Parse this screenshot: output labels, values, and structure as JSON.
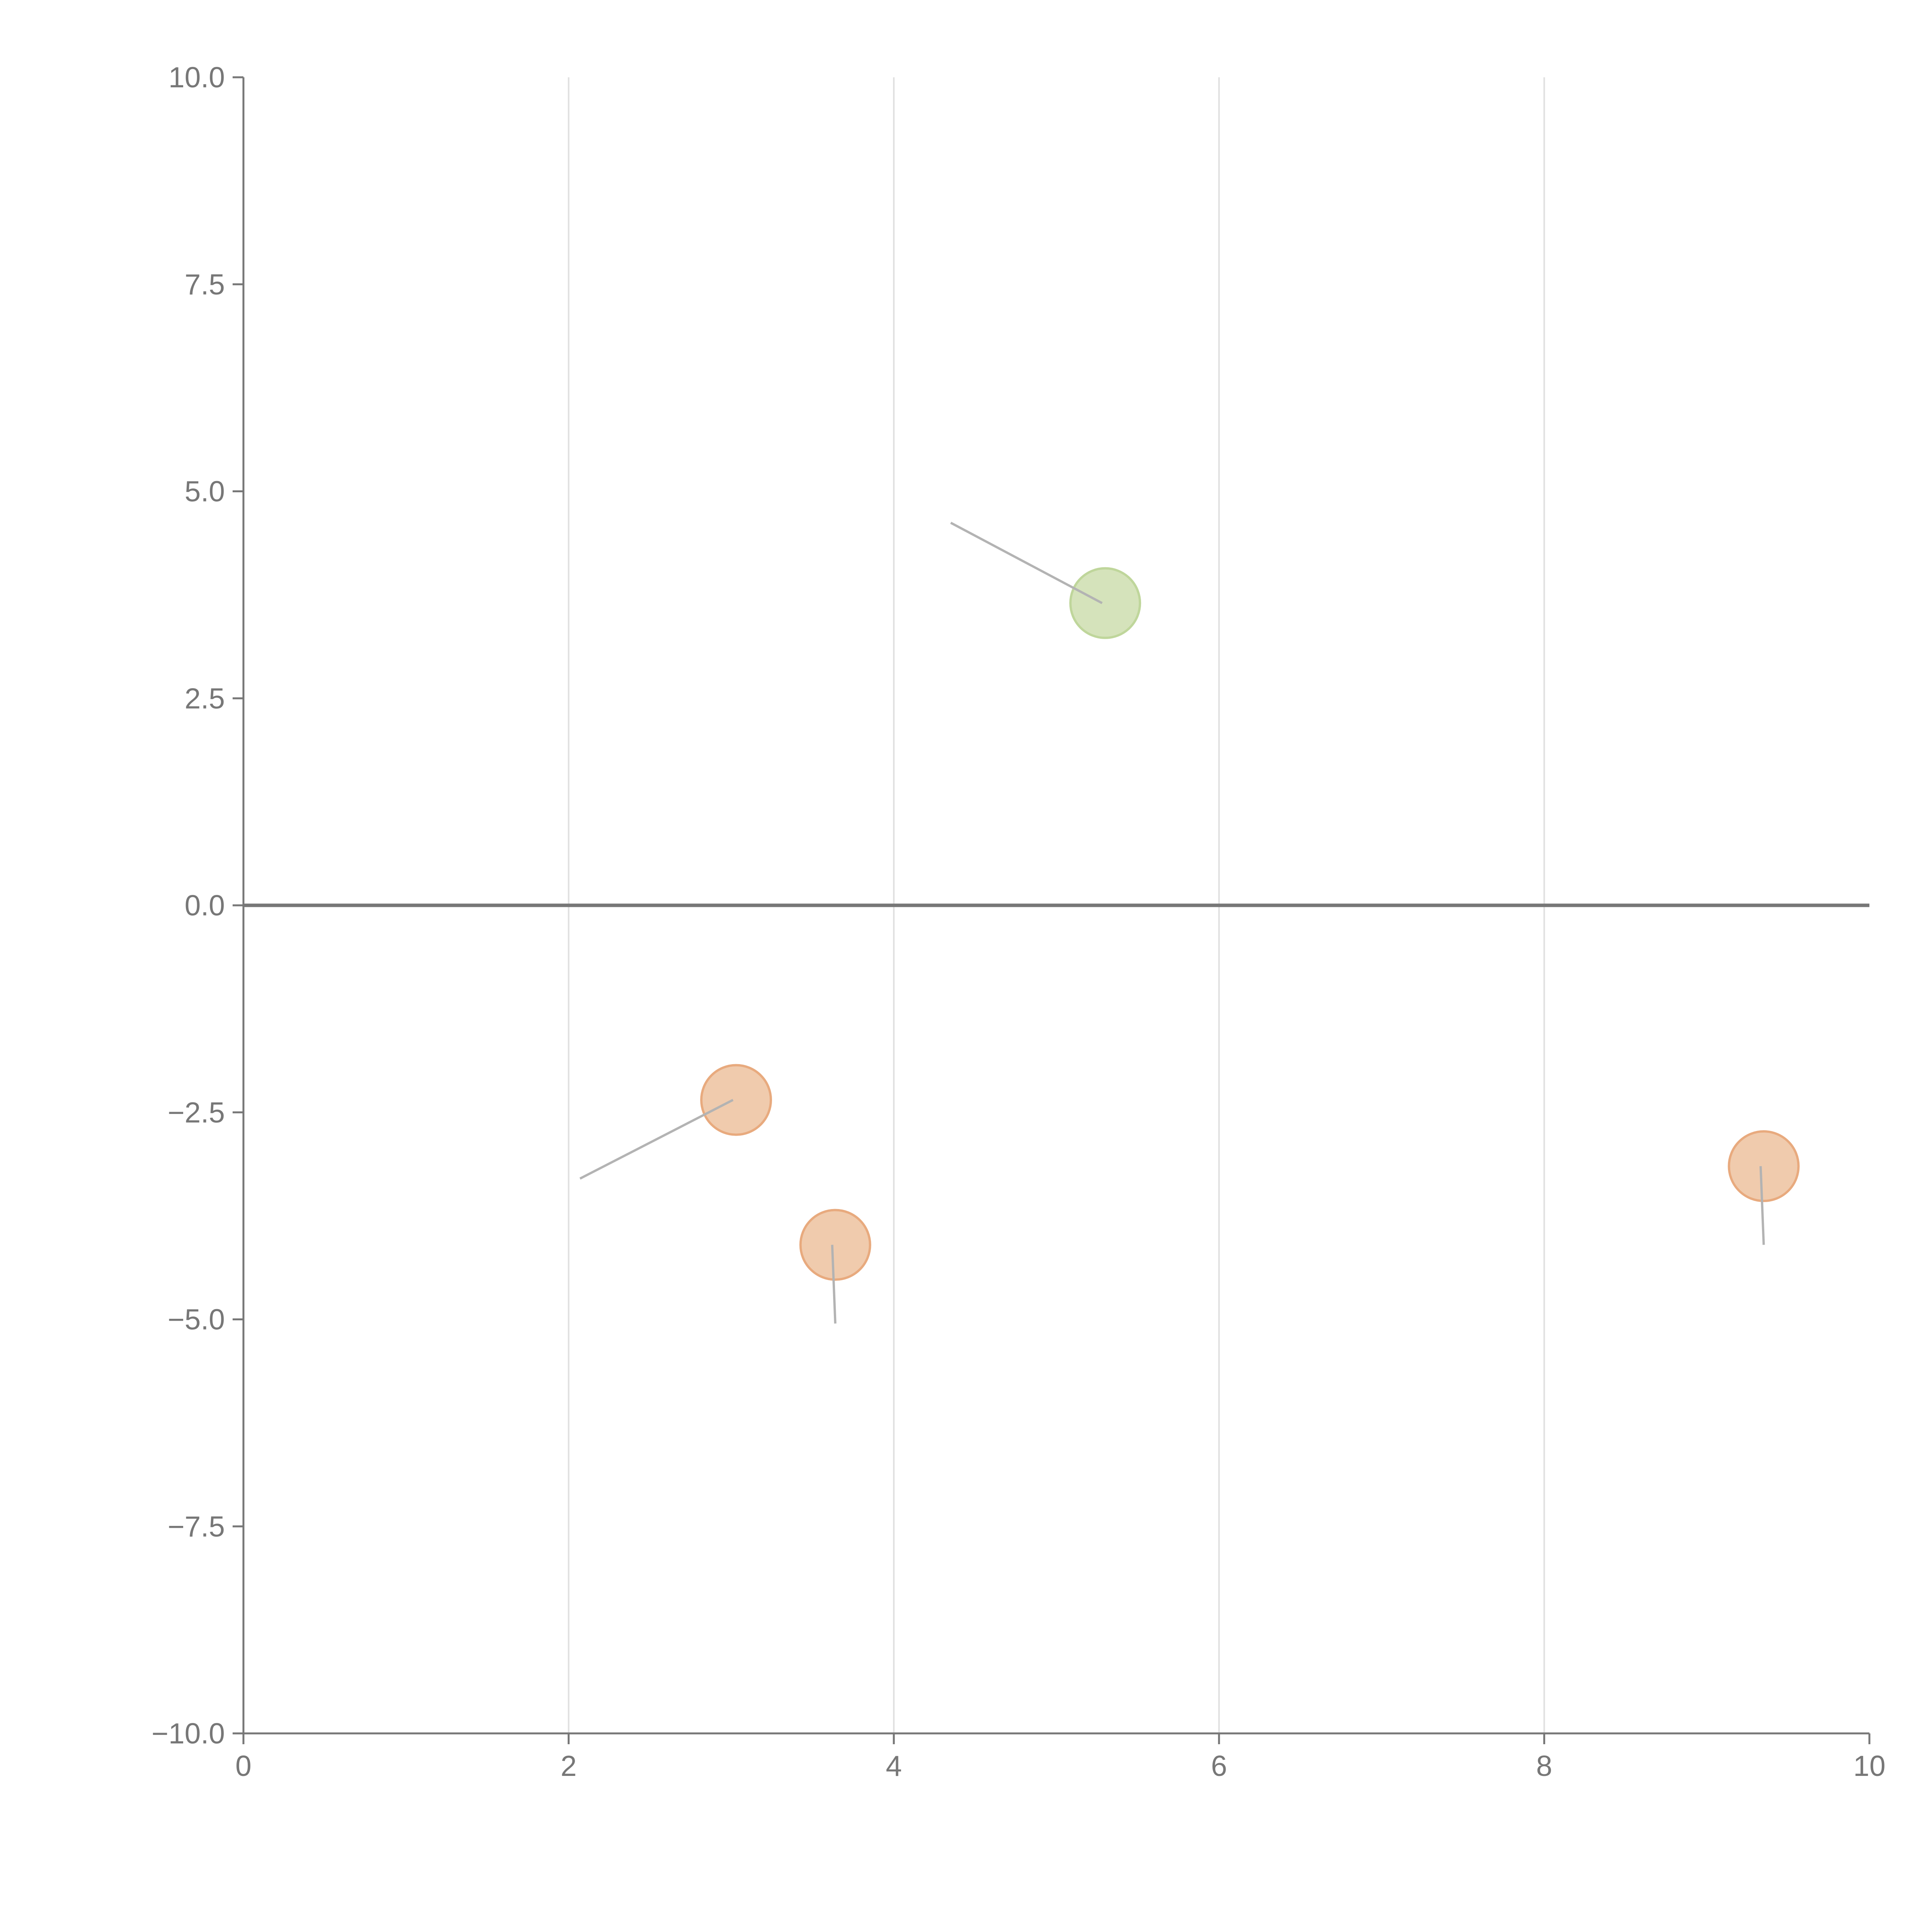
{
  "chart_data": {
    "type": "scatter",
    "title": "",
    "xlabel": "",
    "ylabel": "",
    "xlim": [
      0,
      10
    ],
    "ylim": [
      -10,
      10
    ],
    "x_ticks": [
      "0",
      "2",
      "4",
      "6",
      "8",
      "10"
    ],
    "y_ticks": [
      "10.0",
      "7.5",
      "5.0",
      "2.5",
      "0.0",
      "−2.5",
      "−5.0",
      "−7.5",
      "−10.0"
    ],
    "x_tick_values": [
      0,
      2,
      4,
      6,
      8,
      10
    ],
    "y_tick_values": [
      10,
      7.5,
      5,
      2.5,
      0,
      -2.5,
      -5,
      -7.5,
      -10
    ],
    "grid": "vertical",
    "zero_line": true,
    "points": [
      {
        "x": 5.3,
        "y": 3.65,
        "color": "#d5e3bb",
        "stroke": "#bfd69b",
        "line_to": {
          "x": 4.35,
          "y": 4.62
        }
      },
      {
        "x": 3.03,
        "y": -2.35,
        "color": "#f0cbad",
        "stroke": "#e8aa7e",
        "line_to": {
          "x": 2.07,
          "y": -3.3
        }
      },
      {
        "x": 3.64,
        "y": -4.1,
        "color": "#f0cbad",
        "stroke": "#e8aa7e",
        "line_to": {
          "x": 3.64,
          "y": -5.05
        }
      },
      {
        "x": 9.35,
        "y": -3.15,
        "color": "#f0cbad",
        "stroke": "#e8aa7e",
        "line_to": {
          "x": 9.35,
          "y": -4.1
        }
      }
    ],
    "colors": {
      "axis": "#777777",
      "grid": "#e0e0e0",
      "zero_line": "#777777",
      "connector": "#b3b3b3"
    }
  }
}
